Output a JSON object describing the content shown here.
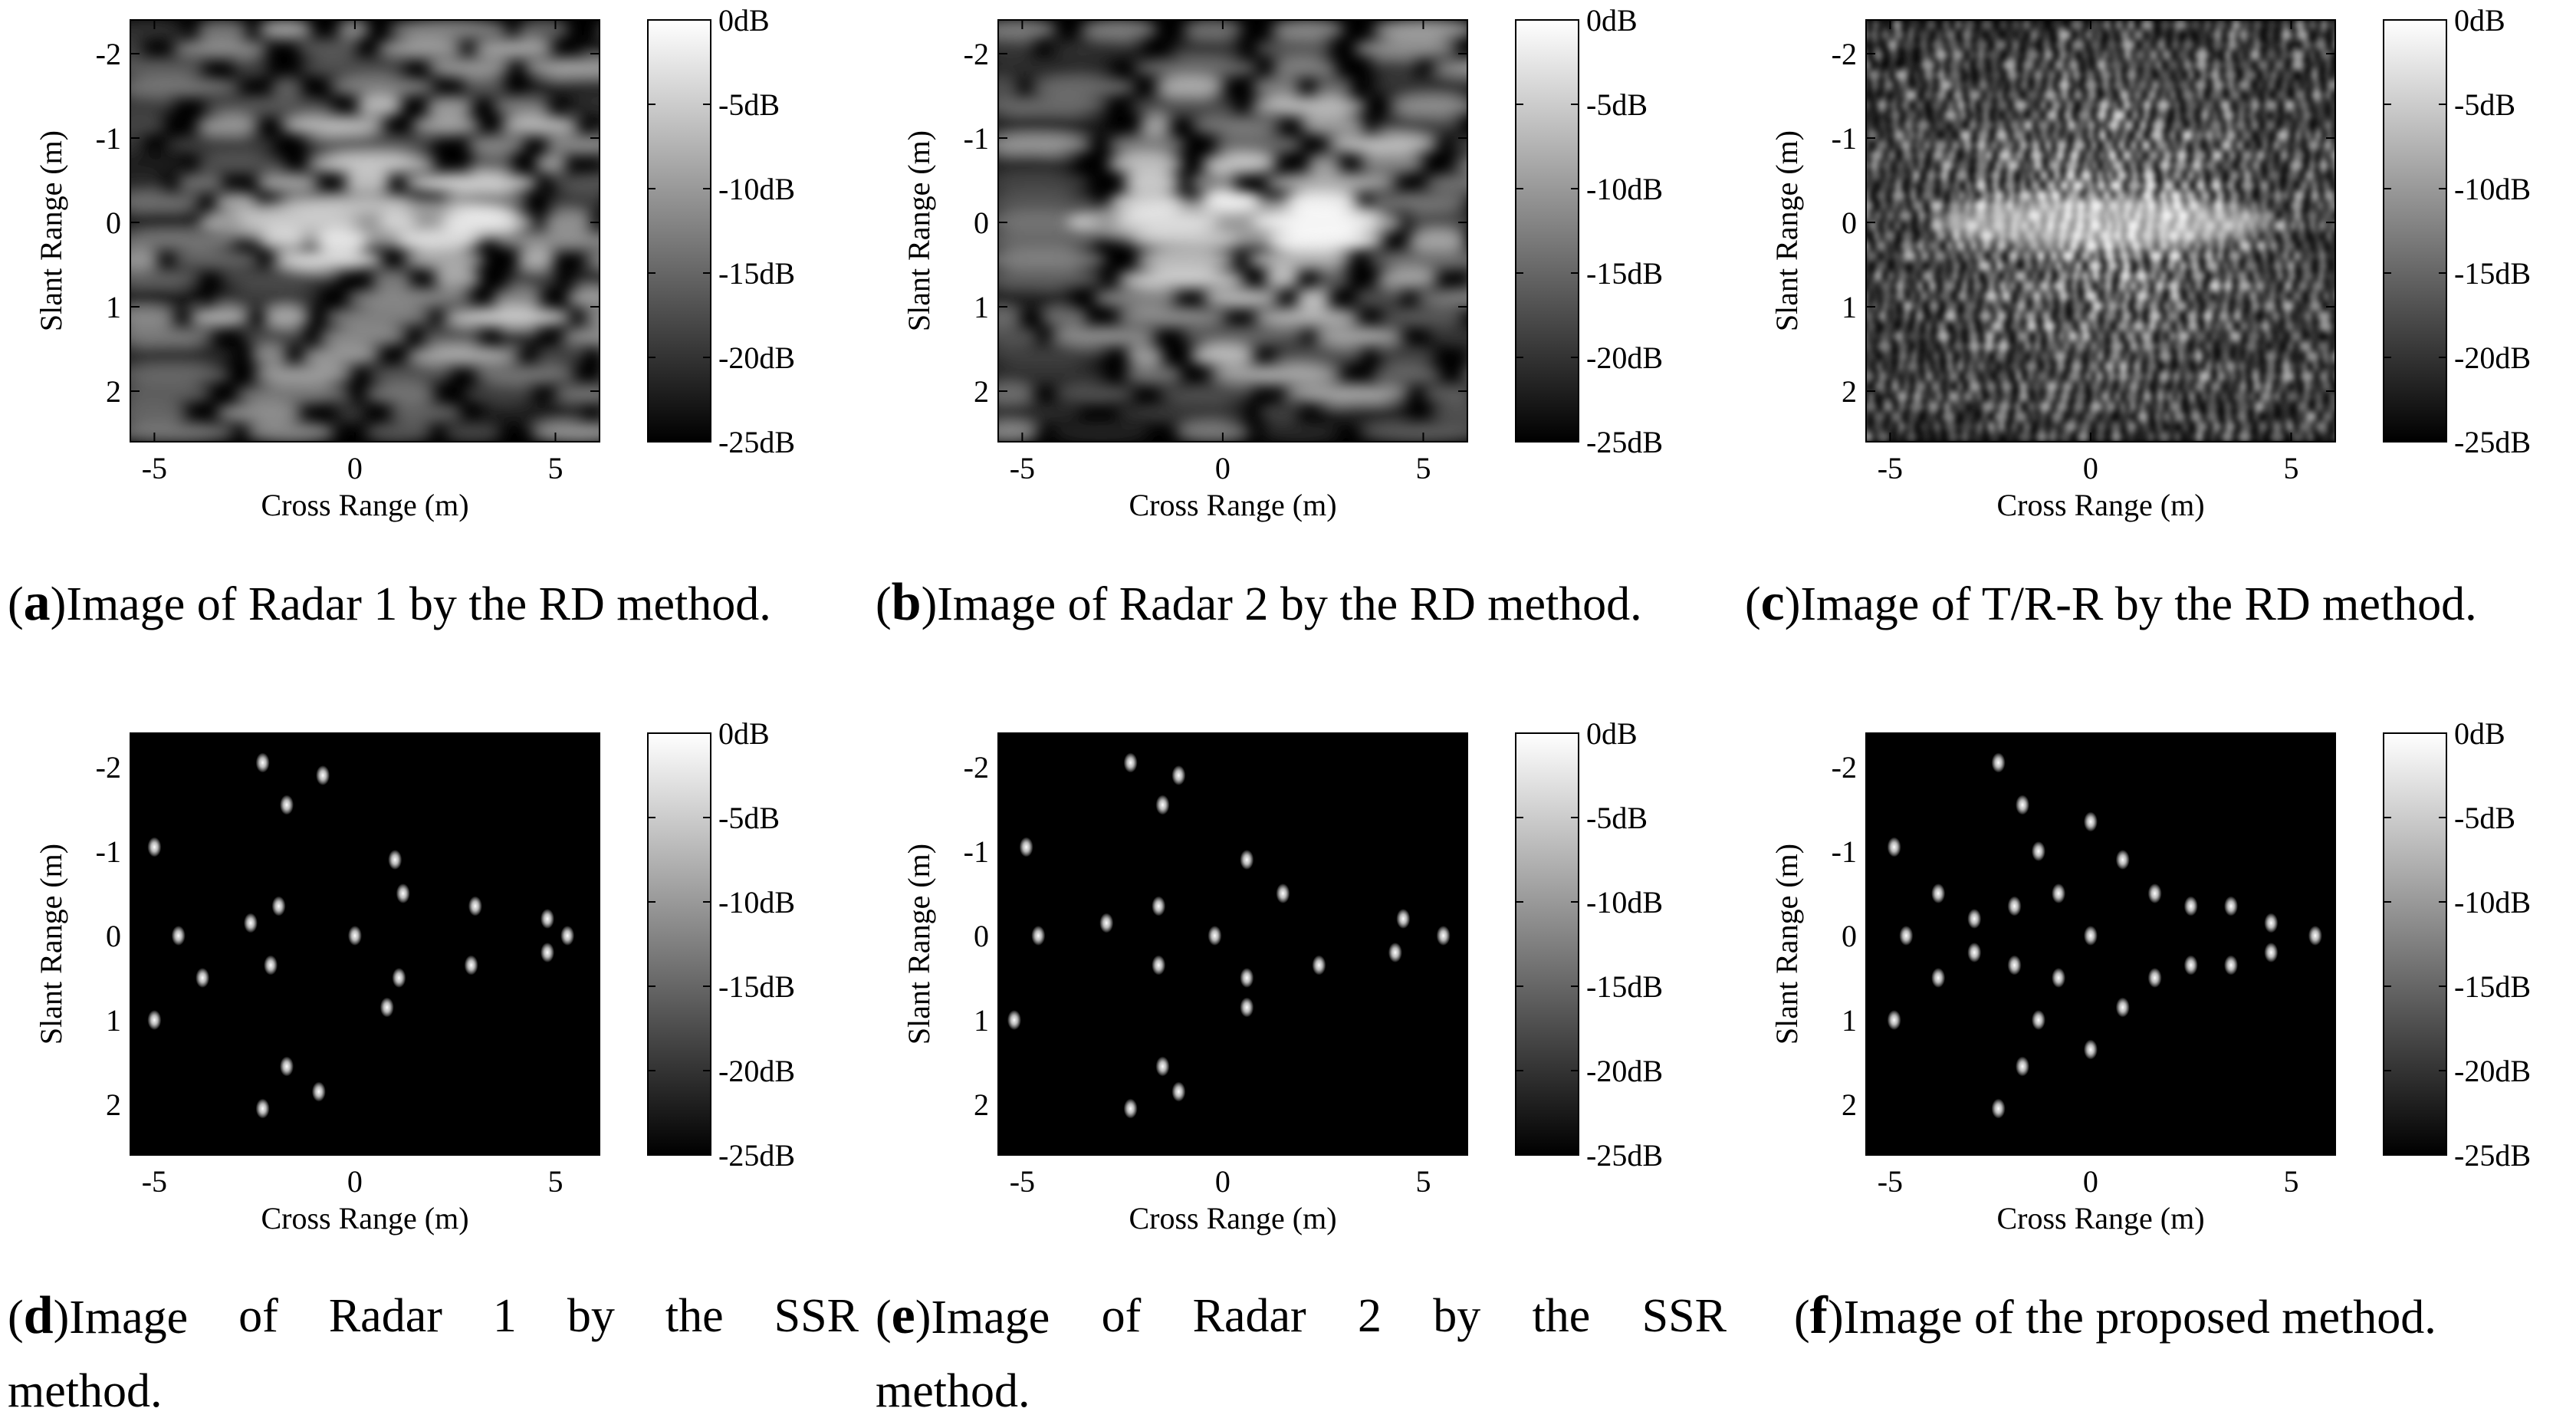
{
  "figure_ids": [
    "a",
    "b",
    "c",
    "d",
    "e",
    "f"
  ],
  "captions": {
    "a": {
      "letter": "a",
      "text": "Image of Radar 1 by the RD method."
    },
    "b": {
      "letter": "b",
      "text": "Image of Radar 2 by the RD method."
    },
    "c": {
      "letter": "c",
      "text": "Image of T/R-R by the RD method."
    },
    "d": {
      "letter": "d",
      "line1_words": [
        "Image",
        "of",
        "Radar",
        "1",
        "by",
        "the",
        "SSR"
      ],
      "line2": "method."
    },
    "e": {
      "letter": "e",
      "line1_words": [
        "Image",
        "of",
        "Radar",
        "2",
        "by",
        "the",
        "SSR"
      ],
      "line2": "method."
    },
    "f": {
      "letter": "f",
      "text": "Image of the proposed method."
    }
  },
  "colorbar": {
    "colormap": "gray",
    "range_db": [
      -25,
      0
    ],
    "tick_labels": [
      "0dB",
      "-5dB",
      "-10dB",
      "-15dB",
      "-20dB",
      "-25dB"
    ]
  },
  "chart_data": [
    {
      "id": "a",
      "type": "heatmap",
      "title": "",
      "xlabel": "Cross Range (m)",
      "ylabel": "Slant Range (m)",
      "xlim": [
        -5.6,
        6.1
      ],
      "ylim": [
        -2.4,
        2.6
      ],
      "y_reversed": true,
      "xticks": [
        -5,
        0,
        5
      ],
      "yticks": [
        -2,
        -1,
        0,
        1,
        2
      ],
      "style": "rd",
      "background": "#000000"
    },
    {
      "id": "b",
      "type": "heatmap",
      "title": "",
      "xlabel": "Cross Range (m)",
      "ylabel": "Slant Range (m)",
      "xlim": [
        -5.6,
        6.1
      ],
      "ylim": [
        -2.4,
        2.6
      ],
      "y_reversed": true,
      "xticks": [
        -5,
        0,
        5
      ],
      "yticks": [
        -2,
        -1,
        0,
        1,
        2
      ],
      "style": "rd",
      "background": "#000000"
    },
    {
      "id": "c",
      "type": "heatmap",
      "title": "",
      "xlabel": "Cross Range (m)",
      "ylabel": "Slant Range (m)",
      "xlim": [
        -5.6,
        6.1
      ],
      "ylim": [
        -2.4,
        2.6
      ],
      "y_reversed": true,
      "xticks": [
        -5,
        0,
        5
      ],
      "yticks": [
        -2,
        -1,
        0,
        1,
        2
      ],
      "style": "rd-fine",
      "background": "#000000"
    },
    {
      "id": "d",
      "type": "scatter",
      "title": "",
      "xlabel": "Cross Range (m)",
      "ylabel": "Slant Range (m)",
      "xlim": [
        -5.6,
        6.1
      ],
      "ylim": [
        -2.4,
        2.6
      ],
      "y_reversed": true,
      "xticks": [
        -5,
        0,
        5
      ],
      "yticks": [
        -2,
        -1,
        0,
        1,
        2
      ],
      "style": "points",
      "background": "#000000",
      "points": [
        {
          "x": -2.3,
          "y": -2.05
        },
        {
          "x": -0.8,
          "y": -1.9
        },
        {
          "x": -1.7,
          "y": -1.55
        },
        {
          "x": -5.0,
          "y": -1.05
        },
        {
          "x": 1.0,
          "y": -0.9
        },
        {
          "x": 1.2,
          "y": -0.5
        },
        {
          "x": -1.9,
          "y": -0.35
        },
        {
          "x": 3.0,
          "y": -0.35
        },
        {
          "x": -2.6,
          "y": -0.15
        },
        {
          "x": 4.8,
          "y": -0.2
        },
        {
          "x": -4.4,
          "y": 0.0
        },
        {
          "x": 0.0,
          "y": 0.0
        },
        {
          "x": 5.3,
          "y": 0.0
        },
        {
          "x": 4.8,
          "y": 0.2
        },
        {
          "x": -2.1,
          "y": 0.35
        },
        {
          "x": 2.9,
          "y": 0.35
        },
        {
          "x": -3.8,
          "y": 0.5
        },
        {
          "x": 1.1,
          "y": 0.5
        },
        {
          "x": 0.8,
          "y": 0.85
        },
        {
          "x": -5.0,
          "y": 1.0
        },
        {
          "x": -1.7,
          "y": 1.55
        },
        {
          "x": -0.9,
          "y": 1.85
        },
        {
          "x": -2.3,
          "y": 2.05
        }
      ]
    },
    {
      "id": "e",
      "type": "scatter",
      "title": "",
      "xlabel": "Cross Range (m)",
      "ylabel": "Slant Range (m)",
      "xlim": [
        -5.6,
        6.1
      ],
      "ylim": [
        -2.4,
        2.6
      ],
      "y_reversed": true,
      "xticks": [
        -5,
        0,
        5
      ],
      "yticks": [
        -2,
        -1,
        0,
        1,
        2
      ],
      "style": "points",
      "background": "#000000",
      "points": [
        {
          "x": -2.3,
          "y": -2.05
        },
        {
          "x": -1.1,
          "y": -1.9
        },
        {
          "x": -1.5,
          "y": -1.55
        },
        {
          "x": -4.9,
          "y": -1.05
        },
        {
          "x": 0.6,
          "y": -0.9
        },
        {
          "x": 1.5,
          "y": -0.5
        },
        {
          "x": -1.6,
          "y": -0.35
        },
        {
          "x": -2.9,
          "y": -0.15
        },
        {
          "x": 4.5,
          "y": -0.2
        },
        {
          "x": -4.6,
          "y": 0.0
        },
        {
          "x": -0.2,
          "y": 0.0
        },
        {
          "x": 5.5,
          "y": 0.0
        },
        {
          "x": 4.3,
          "y": 0.2
        },
        {
          "x": -1.6,
          "y": 0.35
        },
        {
          "x": 2.4,
          "y": 0.35
        },
        {
          "x": 0.6,
          "y": 0.5
        },
        {
          "x": 0.6,
          "y": 0.85
        },
        {
          "x": -5.2,
          "y": 1.0
        },
        {
          "x": -1.5,
          "y": 1.55
        },
        {
          "x": -1.1,
          "y": 1.85
        },
        {
          "x": -2.3,
          "y": 2.05
        }
      ]
    },
    {
      "id": "f",
      "type": "scatter",
      "title": "",
      "xlabel": "Cross Range (m)",
      "ylabel": "Slant Range (m)",
      "xlim": [
        -5.6,
        6.1
      ],
      "ylim": [
        -2.4,
        2.6
      ],
      "y_reversed": true,
      "xticks": [
        -5,
        0,
        5
      ],
      "yticks": [
        -2,
        -1,
        0,
        1,
        2
      ],
      "style": "points",
      "background": "#000000",
      "points": [
        {
          "x": -2.3,
          "y": -2.05
        },
        {
          "x": -1.7,
          "y": -1.55
        },
        {
          "x": 0.0,
          "y": -1.35
        },
        {
          "x": -1.3,
          "y": -1.0
        },
        {
          "x": -4.9,
          "y": -1.05
        },
        {
          "x": 0.8,
          "y": -0.9
        },
        {
          "x": -3.8,
          "y": -0.5
        },
        {
          "x": -0.8,
          "y": -0.5
        },
        {
          "x": 1.6,
          "y": -0.5
        },
        {
          "x": -2.9,
          "y": -0.2
        },
        {
          "x": 2.5,
          "y": -0.35
        },
        {
          "x": 3.5,
          "y": -0.35
        },
        {
          "x": -1.9,
          "y": -0.35
        },
        {
          "x": 4.5,
          "y": -0.15
        },
        {
          "x": -4.6,
          "y": 0.0
        },
        {
          "x": 0.0,
          "y": 0.0
        },
        {
          "x": 5.6,
          "y": 0.0
        },
        {
          "x": -2.9,
          "y": 0.2
        },
        {
          "x": 4.5,
          "y": 0.2
        },
        {
          "x": -1.9,
          "y": 0.35
        },
        {
          "x": 2.5,
          "y": 0.35
        },
        {
          "x": 3.5,
          "y": 0.35
        },
        {
          "x": -3.8,
          "y": 0.5
        },
        {
          "x": -0.8,
          "y": 0.5
        },
        {
          "x": 1.6,
          "y": 0.5
        },
        {
          "x": 0.8,
          "y": 0.85
        },
        {
          "x": -4.9,
          "y": 1.0
        },
        {
          "x": -1.3,
          "y": 1.0
        },
        {
          "x": 0.0,
          "y": 1.35
        },
        {
          "x": -1.7,
          "y": 1.55
        },
        {
          "x": -2.3,
          "y": 2.05
        }
      ]
    }
  ]
}
